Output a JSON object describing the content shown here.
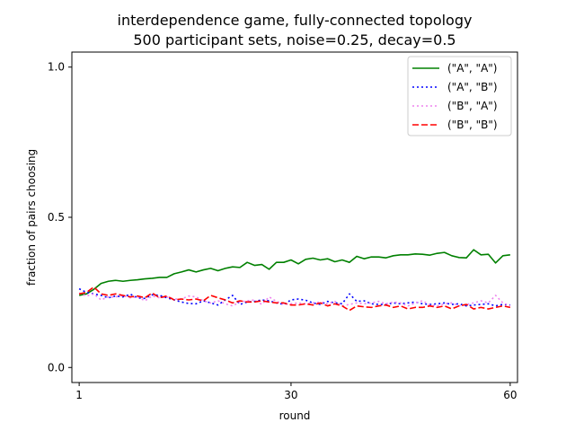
{
  "chart_data": {
    "type": "line",
    "title": "interdependence game, fully-connected topology",
    "subtitle": "500 participant sets, noise=0.25, decay=0.5",
    "xlabel": "round",
    "ylabel": "fraction of pairs choosing",
    "xlim": [
      0,
      61
    ],
    "ylim": [
      -0.05,
      1.05
    ],
    "xticks": [
      1,
      30,
      60
    ],
    "xtick_labels": [
      "1",
      "30",
      "60"
    ],
    "yticks": [
      0.0,
      0.5,
      1.0
    ],
    "ytick_labels": [
      "0.0",
      "0.5",
      "1.0"
    ],
    "grid": false,
    "legend_position": "top-right",
    "x": [
      1,
      2,
      3,
      4,
      5,
      6,
      7,
      8,
      9,
      10,
      11,
      12,
      13,
      14,
      15,
      16,
      17,
      18,
      19,
      20,
      21,
      22,
      23,
      24,
      25,
      26,
      27,
      28,
      29,
      30,
      31,
      32,
      33,
      34,
      35,
      36,
      37,
      38,
      39,
      40,
      41,
      42,
      43,
      44,
      45,
      46,
      47,
      48,
      49,
      50,
      51,
      52,
      53,
      54,
      55,
      56,
      57,
      58,
      59,
      60
    ],
    "series": [
      {
        "name": "(\"A\", \"A\")",
        "color": "#008000",
        "dash": "solid",
        "values": [
          0.24,
          0.245,
          0.26,
          0.28,
          0.287,
          0.29,
          0.287,
          0.29,
          0.292,
          0.295,
          0.297,
          0.3,
          0.3,
          0.312,
          0.318,
          0.325,
          0.318,
          0.325,
          0.33,
          0.322,
          0.33,
          0.335,
          0.333,
          0.35,
          0.34,
          0.343,
          0.327,
          0.35,
          0.35,
          0.358,
          0.345,
          0.36,
          0.364,
          0.358,
          0.362,
          0.352,
          0.358,
          0.35,
          0.37,
          0.362,
          0.368,
          0.368,
          0.365,
          0.372,
          0.375,
          0.375,
          0.378,
          0.377,
          0.374,
          0.38,
          0.383,
          0.372,
          0.366,
          0.365,
          0.392,
          0.375,
          0.377,
          0.348,
          0.372,
          0.375
        ]
      },
      {
        "name": "(\"A\", \"B\")",
        "color": "#0000ff",
        "dash": "dotted",
        "values": [
          0.262,
          0.25,
          0.245,
          0.24,
          0.232,
          0.238,
          0.235,
          0.244,
          0.232,
          0.23,
          0.242,
          0.24,
          0.232,
          0.225,
          0.218,
          0.213,
          0.212,
          0.222,
          0.215,
          0.208,
          0.225,
          0.24,
          0.21,
          0.218,
          0.22,
          0.225,
          0.222,
          0.215,
          0.21,
          0.225,
          0.228,
          0.224,
          0.215,
          0.21,
          0.22,
          0.215,
          0.212,
          0.245,
          0.22,
          0.222,
          0.212,
          0.21,
          0.21,
          0.215,
          0.212,
          0.215,
          0.218,
          0.212,
          0.21,
          0.212,
          0.215,
          0.21,
          0.212,
          0.205,
          0.208,
          0.21,
          0.212,
          0.205,
          0.21,
          0.208
        ]
      },
      {
        "name": "(\"B\", \"A\")",
        "color": "#ee82ee",
        "dash": "dotted",
        "values": [
          0.248,
          0.238,
          0.245,
          0.225,
          0.235,
          0.235,
          0.24,
          0.232,
          0.235,
          0.222,
          0.238,
          0.232,
          0.235,
          0.228,
          0.228,
          0.238,
          0.235,
          0.222,
          0.215,
          0.222,
          0.212,
          0.205,
          0.218,
          0.222,
          0.225,
          0.21,
          0.235,
          0.22,
          0.21,
          0.212,
          0.215,
          0.212,
          0.215,
          0.218,
          0.212,
          0.22,
          0.205,
          0.21,
          0.215,
          0.212,
          0.215,
          0.22,
          0.212,
          0.218,
          0.215,
          0.205,
          0.215,
          0.222,
          0.208,
          0.205,
          0.212,
          0.215,
          0.205,
          0.21,
          0.215,
          0.222,
          0.215,
          0.24,
          0.215,
          0.205
        ]
      },
      {
        "name": "(\"B\", \"B\")",
        "color": "#ff0000",
        "dash": "dashed",
        "values": [
          0.245,
          0.25,
          0.268,
          0.245,
          0.24,
          0.245,
          0.24,
          0.235,
          0.238,
          0.232,
          0.248,
          0.232,
          0.238,
          0.225,
          0.228,
          0.225,
          0.228,
          0.222,
          0.24,
          0.232,
          0.225,
          0.215,
          0.222,
          0.218,
          0.218,
          0.222,
          0.218,
          0.215,
          0.215,
          0.208,
          0.208,
          0.212,
          0.208,
          0.215,
          0.205,
          0.212,
          0.205,
          0.19,
          0.205,
          0.202,
          0.2,
          0.205,
          0.208,
          0.2,
          0.205,
          0.195,
          0.2,
          0.2,
          0.205,
          0.2,
          0.205,
          0.195,
          0.205,
          0.21,
          0.195,
          0.2,
          0.195,
          0.2,
          0.205,
          0.2
        ]
      }
    ]
  }
}
